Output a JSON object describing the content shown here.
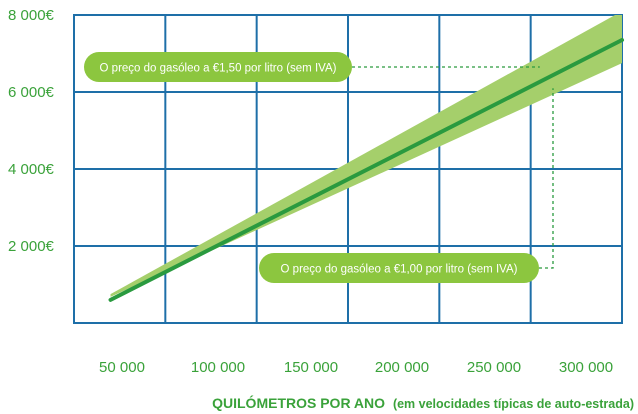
{
  "chart_data": {
    "type": "line",
    "title": "",
    "xlabel": "QUILÓMETROS POR ANO",
    "xlabel_note": "(em velocidades típicas de auto-estrada)",
    "ylabel": "",
    "x_ticks": [
      "50 000",
      "100 000",
      "150 000",
      "200 000",
      "250 000",
      "300 000"
    ],
    "y_ticks": [
      "2 000€",
      "4 000€",
      "6 000€",
      "8 000€"
    ],
    "xlim": [
      30000,
      330000
    ],
    "ylim": [
      0,
      8000
    ],
    "grid": true,
    "band": {
      "x": [
        50000,
        330000
      ],
      "lower": [
        680,
        6750
      ],
      "upper": [
        750,
        8100
      ]
    },
    "series": [
      {
        "values": [
          [
            50000,
            600
          ],
          [
            330000,
            7350
          ]
        ]
      }
    ],
    "annotations": [
      {
        "text": "O preço do gasóleo a €1,50 por litro (sem IVA)",
        "x": 285000,
        "y": 6650
      },
      {
        "text": "O preço do gasóleo a €1,00 por litro (sem IVA)",
        "x": 230000,
        "y": 4350
      }
    ],
    "colors": {
      "grid": "#1e6fa8",
      "band": "#a5cf6b",
      "line": "#2a9a3f",
      "callout": "#8cc63f",
      "text": "#3aa23a"
    }
  }
}
